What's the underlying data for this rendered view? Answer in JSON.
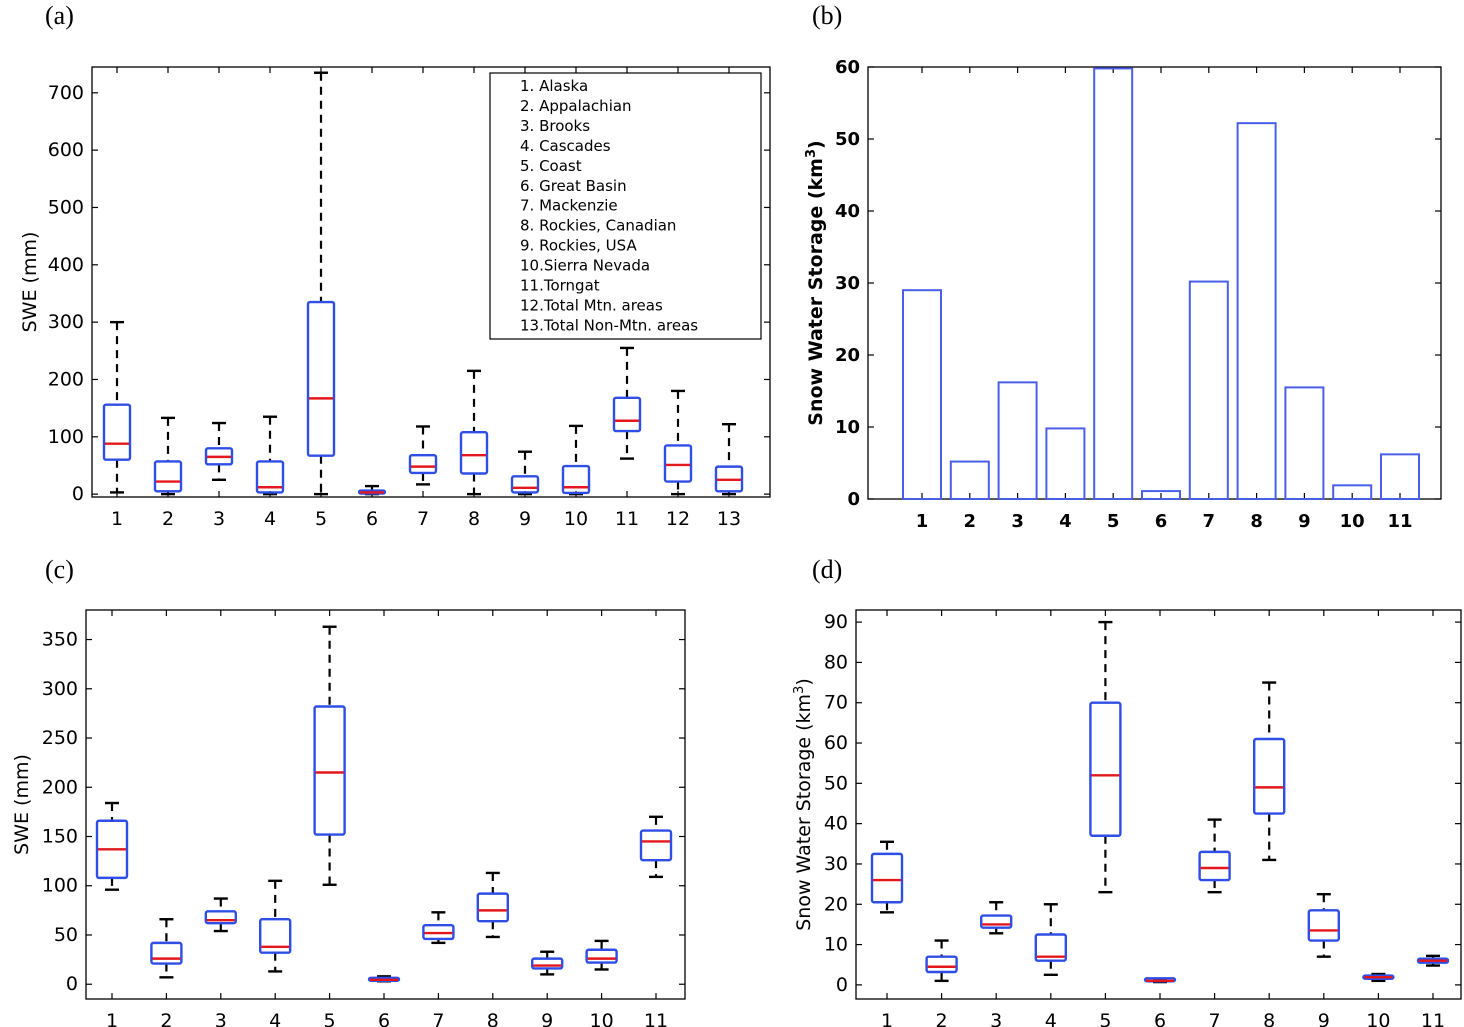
{
  "colors": {
    "box": "#2f4ee6",
    "median": "#e3171c",
    "whisker": "#000000",
    "bar": "#4a5fe8",
    "axis": "#000000"
  },
  "chart_data": [
    {
      "type": "boxplot",
      "panel_label": "(a)",
      "ylabel": "SWE (mm)",
      "ylim": [
        -5,
        745
      ],
      "yticks": [
        0,
        100,
        200,
        300,
        400,
        500,
        600,
        700
      ],
      "categories": [
        "1",
        "2",
        "3",
        "4",
        "5",
        "6",
        "7",
        "8",
        "9",
        "10",
        "11",
        "12",
        "13"
      ],
      "legend": [
        "1. Alaska",
        "2. Appalachian",
        "3. Brooks",
        "4. Cascades",
        "5. Coast",
        "6. Great Basin",
        "7. Mackenzie",
        "8. Rockies, Canadian",
        "9. Rockies, USA",
        "10.Sierra Nevada",
        "11.Torngat",
        "12.Total Mtn. areas",
        "13.Total Non-Mtn. areas"
      ],
      "boxes": [
        {
          "min": 3,
          "q1": 60,
          "median": 88,
          "q3": 156,
          "max": 300
        },
        {
          "min": 0,
          "q1": 5,
          "median": 22,
          "q3": 57,
          "max": 133
        },
        {
          "min": 25,
          "q1": 52,
          "median": 65,
          "q3": 80,
          "max": 124
        },
        {
          "min": 0,
          "q1": 3,
          "median": 12,
          "q3": 57,
          "max": 135
        },
        {
          "min": 0,
          "q1": 67,
          "median": 167,
          "q3": 335,
          "max": 735
        },
        {
          "min": 0,
          "q1": 1,
          "median": 3,
          "q3": 6,
          "max": 14
        },
        {
          "min": 17,
          "q1": 37,
          "median": 48,
          "q3": 68,
          "max": 118
        },
        {
          "min": 0,
          "q1": 36,
          "median": 68,
          "q3": 108,
          "max": 215
        },
        {
          "min": 0,
          "q1": 3,
          "median": 11,
          "q3": 31,
          "max": 74
        },
        {
          "min": 0,
          "q1": 2,
          "median": 12,
          "q3": 49,
          "max": 119
        },
        {
          "min": 62,
          "q1": 110,
          "median": 128,
          "q3": 168,
          "max": 255
        },
        {
          "min": 0,
          "q1": 22,
          "median": 51,
          "q3": 85,
          "max": 180
        },
        {
          "min": 0,
          "q1": 5,
          "median": 25,
          "q3": 48,
          "max": 122
        }
      ]
    },
    {
      "type": "bar",
      "panel_label": "(b)",
      "ylabel": "Snow Water Storage (km",
      "ylabel_sup": "3",
      "ylabel_end": ")",
      "ylim": [
        0,
        60
      ],
      "yticks": [
        0,
        10,
        20,
        30,
        40,
        50,
        60
      ],
      "categories": [
        "1",
        "2",
        "3",
        "4",
        "5",
        "6",
        "7",
        "8",
        "9",
        "10",
        "11"
      ],
      "values": [
        29,
        5.2,
        16.2,
        9.8,
        59.8,
        1.1,
        30.2,
        52.2,
        15.5,
        1.9,
        6.2
      ]
    },
    {
      "type": "boxplot",
      "panel_label": "(c)",
      "ylabel": "SWE (mm)",
      "ylim": [
        -15,
        380
      ],
      "yticks": [
        0,
        50,
        100,
        150,
        200,
        250,
        300,
        350
      ],
      "categories": [
        "1",
        "2",
        "3",
        "4",
        "5",
        "6",
        "7",
        "8",
        "9",
        "10",
        "11"
      ],
      "boxes": [
        {
          "min": 96,
          "q1": 108,
          "median": 137,
          "q3": 166,
          "max": 184
        },
        {
          "min": 7,
          "q1": 21,
          "median": 26,
          "q3": 42,
          "max": 66
        },
        {
          "min": 54,
          "q1": 62,
          "median": 65,
          "q3": 74,
          "max": 87
        },
        {
          "min": 13,
          "q1": 32,
          "median": 38,
          "q3": 66,
          "max": 105
        },
        {
          "min": 101,
          "q1": 152,
          "median": 215,
          "q3": 282,
          "max": 363
        },
        {
          "min": 3,
          "q1": 3.5,
          "median": 4.5,
          "q3": 6,
          "max": 8
        },
        {
          "min": 42,
          "q1": 46,
          "median": 52,
          "q3": 60,
          "max": 73
        },
        {
          "min": 48,
          "q1": 64,
          "median": 75,
          "q3": 92,
          "max": 113
        },
        {
          "min": 10,
          "q1": 16,
          "median": 19,
          "q3": 26,
          "max": 33
        },
        {
          "min": 15,
          "q1": 22,
          "median": 26,
          "q3": 35,
          "max": 44
        },
        {
          "min": 109,
          "q1": 126,
          "median": 145,
          "q3": 156,
          "max": 170
        }
      ]
    },
    {
      "type": "boxplot",
      "panel_label": "(d)",
      "ylabel": "Snow Water Storage (km",
      "ylabel_sup": "3",
      "ylabel_end": ")",
      "ylim": [
        -3.5,
        93
      ],
      "yticks": [
        0,
        10,
        20,
        30,
        40,
        50,
        60,
        70,
        80,
        90
      ],
      "categories": [
        "1",
        "2",
        "3",
        "4",
        "5",
        "6",
        "7",
        "8",
        "9",
        "10",
        "11"
      ],
      "boxes": [
        {
          "min": 18,
          "q1": 20.5,
          "median": 26,
          "q3": 32.5,
          "max": 35.5
        },
        {
          "min": 1,
          "q1": 3.2,
          "median": 4.5,
          "q3": 7,
          "max": 11
        },
        {
          "min": 12.8,
          "q1": 14.2,
          "median": 15,
          "q3": 17.2,
          "max": 20.5
        },
        {
          "min": 2.5,
          "q1": 6,
          "median": 7,
          "q3": 12.5,
          "max": 20
        },
        {
          "min": 23,
          "q1": 37,
          "median": 52,
          "q3": 70,
          "max": 90
        },
        {
          "min": 0.7,
          "q1": 0.9,
          "median": 1,
          "q3": 1.2,
          "max": 1.5
        },
        {
          "min": 23,
          "q1": 26,
          "median": 29,
          "q3": 33,
          "max": 41
        },
        {
          "min": 31,
          "q1": 42.5,
          "median": 49,
          "q3": 61,
          "max": 75
        },
        {
          "min": 7,
          "q1": 11,
          "median": 13.5,
          "q3": 18.5,
          "max": 22.5
        },
        {
          "min": 1,
          "q1": 1.5,
          "median": 1.9,
          "q3": 2.3,
          "max": 2.7
        },
        {
          "min": 4.8,
          "q1": 5.5,
          "median": 6,
          "q3": 6.5,
          "max": 7.2
        }
      ]
    }
  ]
}
